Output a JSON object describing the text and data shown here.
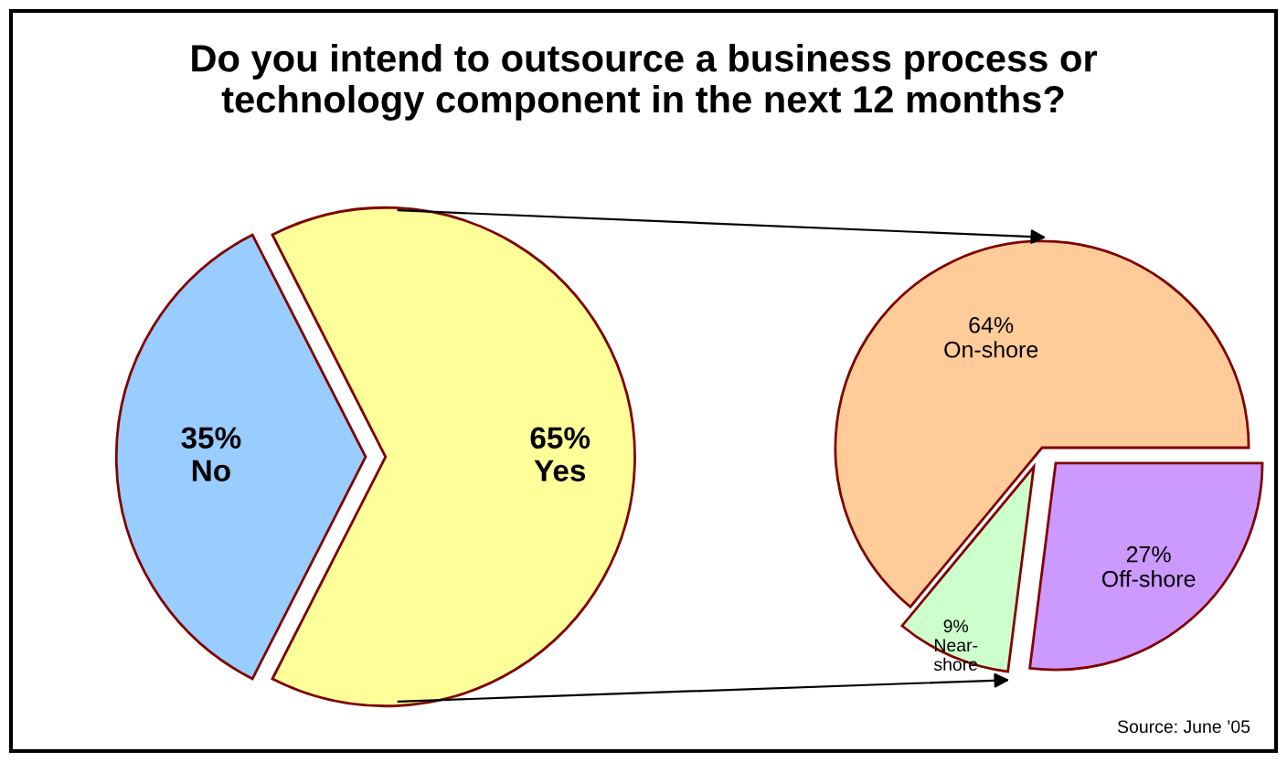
{
  "chart_data": [
    {
      "type": "pie",
      "title": "Do you intend to outsource a business process or\ntechnology component in the next 12 months?",
      "categories": [
        "No",
        "Yes"
      ],
      "values": [
        35,
        65
      ],
      "value_labels": [
        "35%",
        "65%"
      ],
      "colors": [
        "#99ccff",
        "#ffff99"
      ]
    },
    {
      "type": "pie",
      "categories": [
        "On-shore",
        "Near-\nshore",
        "Off-shore"
      ],
      "values": [
        64,
        9,
        27
      ],
      "value_labels": [
        "64%",
        "9%",
        "27%"
      ],
      "colors": [
        "#ffcc99",
        "#ccffcc",
        "#cc99ff"
      ],
      "annotations": [
        "Source: June ’05"
      ]
    }
  ]
}
